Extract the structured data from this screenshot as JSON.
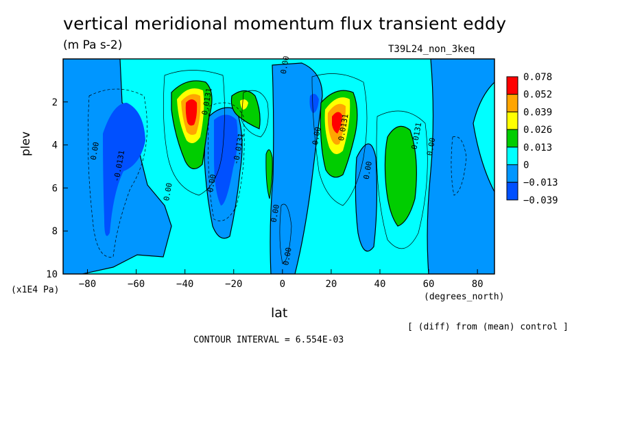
{
  "chart_data": {
    "type": "heatmap",
    "title": "vertical meridional momentum flux transient eddy",
    "units": "(m Pa s-2)",
    "run_label": "T39L24_non_3keq",
    "xlabel": "lat",
    "x_units": "(degrees_north)",
    "ylabel": "plev",
    "y_units": "(x1E4 Pa)",
    "xlim": [
      -90,
      87
    ],
    "ylim": [
      0,
      10
    ],
    "y_inverted": true,
    "x_ticks": [
      -80,
      -60,
      -40,
      -20,
      0,
      20,
      40,
      60,
      80
    ],
    "y_ticks": [
      2,
      4,
      6,
      8,
      10
    ],
    "legend": {
      "placement": "right",
      "levels": [
        0.078,
        0.052,
        0.039,
        0.026,
        0.013,
        0,
        -0.013,
        -0.039
      ],
      "labels": [
        "0.078",
        "0.052",
        "0.039",
        "0.026",
        "0.013",
        "0",
        "−0.013",
        "−0.039"
      ],
      "colors": [
        "#ff0000",
        "#ffa500",
        "#ffff00",
        "#00cd00",
        "#00ffff",
        "#0096ff",
        "#0050ff"
      ]
    },
    "contour_labels": [
      {
        "text": "0.00",
        "lat": 2,
        "plev": 0.3
      },
      {
        "text": "0.00",
        "lat": -76,
        "plev": 4.3
      },
      {
        "text": "-0.0131",
        "lat": -66,
        "plev": 5.0
      },
      {
        "text": "0.00",
        "lat": -46,
        "plev": 6.2
      },
      {
        "text": "0.0131",
        "lat": -30,
        "plev": 2.0
      },
      {
        "text": "0.00",
        "lat": -28,
        "plev": 5.8
      },
      {
        "text": "-0.0131",
        "lat": -17,
        "plev": 4.2
      },
      {
        "text": "0.00",
        "lat": -2,
        "plev": 7.2
      },
      {
        "text": "0.00",
        "lat": 3,
        "plev": 9.2
      },
      {
        "text": "0.00",
        "lat": 15,
        "plev": 3.6
      },
      {
        "text": "0.0131",
        "lat": 26,
        "plev": 3.2
      },
      {
        "text": "0.00",
        "lat": 36,
        "plev": 5.2
      },
      {
        "text": "0.0131",
        "lat": 56,
        "plev": 3.6
      },
      {
        "text": "0.00",
        "lat": 62,
        "plev": 4.1
      }
    ],
    "contour_interval_text": "CONTOUR INTERVAL = 6.554E-03",
    "note": "[ (diff) from (mean) control ]"
  }
}
